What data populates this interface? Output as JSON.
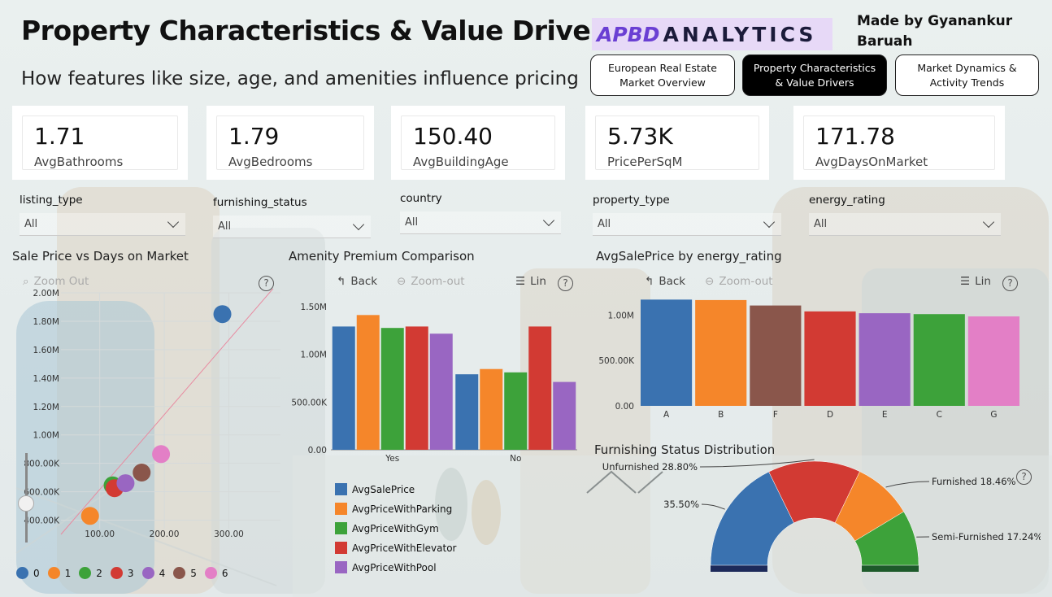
{
  "header": {
    "title": "Property Characteristics & Value Drivers",
    "subtitle": "How features like size, age, and amenities influence pricing",
    "logo_mark": "APBD",
    "logo_text": "ANALYTICS",
    "made_by": "Made by Gyanankur Baruah"
  },
  "nav": [
    {
      "label": "European Real Estate Market Overview",
      "active": false
    },
    {
      "label": "Property Characteristics & Value Drivers",
      "active": true
    },
    {
      "label": "Market Dynamics & Activity Trends",
      "active": false
    }
  ],
  "kpis": [
    {
      "value": "1.71",
      "label": "AvgBathrooms"
    },
    {
      "value": "1.79",
      "label": "AvgBedrooms"
    },
    {
      "value": "150.40",
      "label": "AvgBuildingAge"
    },
    {
      "value": "5.73K",
      "label": "PricePerSqM"
    },
    {
      "value": "171.78",
      "label": "AvgDaysOnMarket"
    }
  ],
  "slicers": [
    {
      "label": "listing_type",
      "value": "All"
    },
    {
      "label": "furnishing_status",
      "value": "All"
    },
    {
      "label": "country",
      "value": "All"
    },
    {
      "label": "property_type",
      "value": "All"
    },
    {
      "label": "energy_rating",
      "value": "All"
    }
  ],
  "toolbar": {
    "back": "Back",
    "zoom_out": "Zoom-out",
    "lin": "Lin",
    "help": "?",
    "zoom_out_scatter": "Zoom Out"
  },
  "colors": {
    "blue": "#3a72b0",
    "orange": "#f5862a",
    "green": "#3da23a",
    "red": "#d23a33",
    "purple": "#9966c2",
    "brown": "#8a564b",
    "pink": "#e37fc6"
  },
  "chart_data": [
    {
      "type": "scatter",
      "title": "Sale Price vs Days on Market",
      "x_ticks": [
        "100.00",
        "200.00",
        "300.00"
      ],
      "y_ticks": [
        "400.00K",
        "600.00K",
        "800.00K",
        "1.00M",
        "1.20M",
        "1.40M",
        "1.60M",
        "1.80M",
        "2.00M"
      ],
      "xlim": [
        40,
        380
      ],
      "ylim": [
        340000,
        2000000
      ],
      "legend": [
        "0",
        "1",
        "2",
        "3",
        "4",
        "5",
        "6"
      ],
      "points": [
        {
          "series": "0",
          "x": 290,
          "y": 1850000
        },
        {
          "series": "1",
          "x": 85,
          "y": 430000
        },
        {
          "series": "2",
          "x": 120,
          "y": 645000
        },
        {
          "series": "3",
          "x": 123,
          "y": 625000
        },
        {
          "series": "4",
          "x": 140,
          "y": 660000
        },
        {
          "series": "5",
          "x": 165,
          "y": 735000
        },
        {
          "series": "6",
          "x": 195,
          "y": 865000
        }
      ],
      "trendline": [
        [
          40,
          300000
        ],
        [
          380,
          2090000
        ]
      ]
    },
    {
      "type": "bar",
      "title": "Amenity Premium Comparison",
      "categories": [
        "Yes",
        "No"
      ],
      "y_ticks": [
        "0.00",
        "500.00K",
        "1.00M",
        "1.50M"
      ],
      "ylim": [
        0,
        1600000
      ],
      "series": [
        {
          "name": "AvgSalePrice",
          "values": [
            1290000,
            790000
          ]
        },
        {
          "name": "AvgPriceWithParking",
          "values": [
            1410000,
            845000
          ]
        },
        {
          "name": "AvgPriceWithGym",
          "values": [
            1275000,
            810000
          ]
        },
        {
          "name": "AvgPriceWithElevator",
          "values": [
            1290000,
            1290000
          ]
        },
        {
          "name": "AvgPriceWithPool",
          "values": [
            1215000,
            710000
          ]
        }
      ]
    },
    {
      "type": "bar",
      "title": "AvgSalePrice by energy_rating",
      "categories": [
        "A",
        "B",
        "F",
        "D",
        "E",
        "C",
        "G"
      ],
      "values": [
        1170000,
        1165000,
        1105000,
        1040000,
        1020000,
        1010000,
        985000
      ],
      "y_ticks": [
        "0.00",
        "500.00K",
        "1.00M"
      ],
      "ylim": [
        0,
        1200000
      ]
    },
    {
      "type": "pie",
      "title": "Furnishing Status Distribution",
      "slices": [
        {
          "label": "35.50%",
          "value": 35.5
        },
        {
          "label": "Unfurnished 28.80%",
          "value": 28.8
        },
        {
          "label": "Furnished 18.46%",
          "value": 18.46
        },
        {
          "label": "Semi-Furnished 17.24%",
          "value": 17.24
        }
      ]
    }
  ]
}
